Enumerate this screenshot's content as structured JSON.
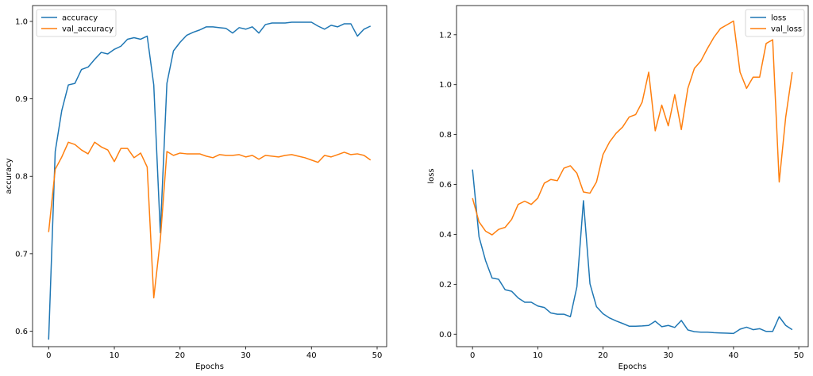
{
  "chart_data": [
    {
      "type": "line",
      "xlabel": "Epochs",
      "ylabel": "accuracy",
      "xlim": [
        -2.45,
        51.45
      ],
      "ylim": [
        0.58,
        1.0205
      ],
      "xticks": [
        0,
        10,
        20,
        30,
        40,
        50
      ],
      "yticks": [
        0.6,
        0.7,
        0.8,
        0.9,
        1.0
      ],
      "ytick_labels": [
        "0.6",
        "0.7",
        "0.8",
        "0.9",
        "1.0"
      ],
      "grid": false,
      "legend_position": "top-left",
      "x": [
        0,
        1,
        2,
        3,
        4,
        5,
        6,
        7,
        8,
        9,
        10,
        11,
        12,
        13,
        14,
        15,
        16,
        17,
        18,
        19,
        20,
        21,
        22,
        23,
        24,
        25,
        26,
        27,
        28,
        29,
        30,
        31,
        32,
        33,
        34,
        35,
        36,
        37,
        38,
        39,
        40,
        41,
        42,
        43,
        44,
        45,
        46,
        47,
        48,
        49
      ],
      "series": [
        {
          "name": "accuracy",
          "color": "#1f77b4",
          "values": [
            0.589,
            0.832,
            0.885,
            0.918,
            0.92,
            0.938,
            0.941,
            0.951,
            0.96,
            0.958,
            0.964,
            0.968,
            0.977,
            0.979,
            0.977,
            0.981,
            0.918,
            0.727,
            0.92,
            0.962,
            0.973,
            0.982,
            0.986,
            0.989,
            0.993,
            0.993,
            0.992,
            0.991,
            0.985,
            0.992,
            0.99,
            0.993,
            0.985,
            0.996,
            0.998,
            0.998,
            0.998,
            0.999,
            0.999,
            0.999,
            0.999,
            0.994,
            0.99,
            0.995,
            0.993,
            0.997,
            0.997,
            0.981,
            0.99,
            0.994
          ]
        },
        {
          "name": "val_accuracy",
          "color": "#ff7f0e",
          "values": [
            0.728,
            0.809,
            0.825,
            0.844,
            0.841,
            0.834,
            0.829,
            0.844,
            0.838,
            0.834,
            0.819,
            0.836,
            0.836,
            0.824,
            0.83,
            0.812,
            0.643,
            0.718,
            0.832,
            0.827,
            0.83,
            0.829,
            0.829,
            0.829,
            0.826,
            0.824,
            0.828,
            0.827,
            0.827,
            0.828,
            0.825,
            0.827,
            0.822,
            0.827,
            0.826,
            0.825,
            0.827,
            0.828,
            0.826,
            0.824,
            0.821,
            0.818,
            0.827,
            0.825,
            0.828,
            0.831,
            0.828,
            0.829,
            0.827,
            0.821
          ]
        }
      ]
    },
    {
      "type": "line",
      "xlabel": "Epochs",
      "ylabel": "loss",
      "xlim": [
        -2.45,
        51.45
      ],
      "ylim": [
        -0.05,
        1.317
      ],
      "xticks": [
        0,
        10,
        20,
        30,
        40,
        50
      ],
      "yticks": [
        0.0,
        0.2,
        0.4,
        0.6,
        0.8,
        1.0,
        1.2
      ],
      "ytick_labels": [
        "0.0",
        "0.2",
        "0.4",
        "0.6",
        "0.8",
        "1.0",
        "1.2"
      ],
      "grid": false,
      "legend_position": "top-right",
      "x": [
        0,
        1,
        2,
        3,
        4,
        5,
        6,
        7,
        8,
        9,
        10,
        11,
        12,
        13,
        14,
        15,
        16,
        17,
        18,
        19,
        20,
        21,
        22,
        23,
        24,
        25,
        26,
        27,
        28,
        29,
        30,
        31,
        32,
        33,
        34,
        35,
        36,
        37,
        38,
        39,
        40,
        41,
        42,
        43,
        44,
        45,
        46,
        47,
        48,
        49
      ],
      "series": [
        {
          "name": "loss",
          "color": "#1f77b4",
          "values": [
            0.66,
            0.39,
            0.295,
            0.225,
            0.22,
            0.178,
            0.172,
            0.145,
            0.128,
            0.128,
            0.113,
            0.107,
            0.085,
            0.08,
            0.08,
            0.07,
            0.19,
            0.535,
            0.202,
            0.11,
            0.082,
            0.065,
            0.053,
            0.043,
            0.032,
            0.032,
            0.033,
            0.035,
            0.052,
            0.03,
            0.035,
            0.027,
            0.055,
            0.017,
            0.01,
            0.008,
            0.008,
            0.006,
            0.005,
            0.004,
            0.003,
            0.02,
            0.028,
            0.018,
            0.022,
            0.011,
            0.011,
            0.07,
            0.035,
            0.018
          ]
        },
        {
          "name": "val_loss",
          "color": "#ff7f0e",
          "values": [
            0.545,
            0.45,
            0.413,
            0.398,
            0.42,
            0.428,
            0.46,
            0.52,
            0.533,
            0.52,
            0.545,
            0.605,
            0.62,
            0.615,
            0.665,
            0.675,
            0.645,
            0.57,
            0.565,
            0.61,
            0.72,
            0.77,
            0.805,
            0.83,
            0.87,
            0.88,
            0.93,
            1.05,
            0.815,
            0.918,
            0.835,
            0.96,
            0.82,
            0.985,
            1.065,
            1.095,
            1.145,
            1.19,
            1.225,
            1.24,
            1.255,
            1.05,
            0.985,
            1.03,
            1.03,
            1.165,
            1.18,
            0.61,
            0.87,
            1.05
          ]
        }
      ]
    }
  ]
}
